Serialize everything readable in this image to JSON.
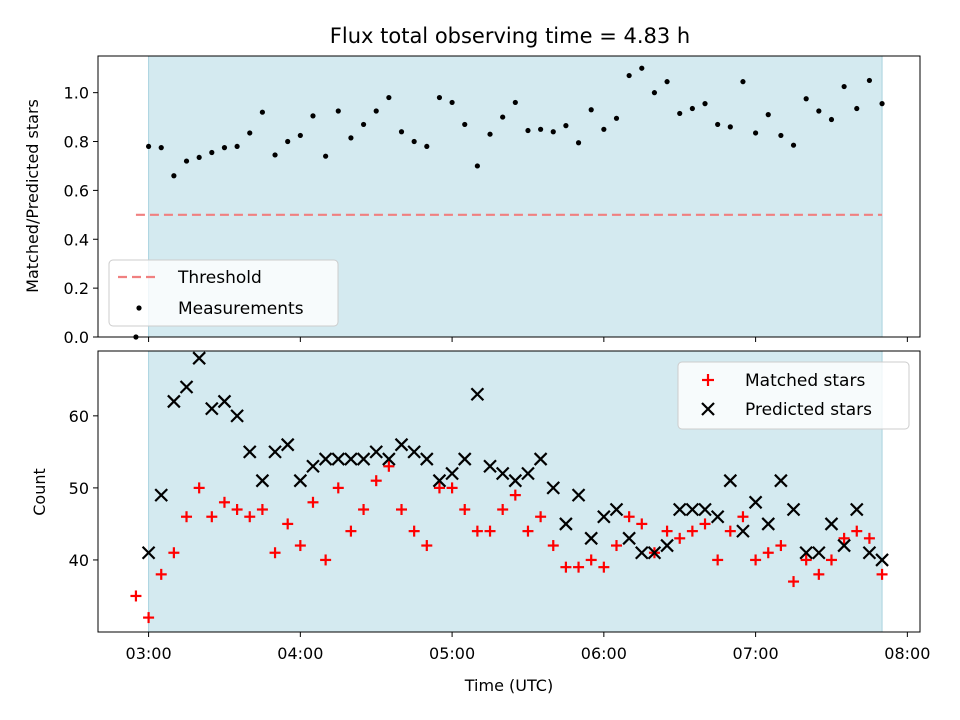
{
  "title": "Flux total observing time = 4.83 h",
  "colors": {
    "observing_span": "#d4eaf0",
    "threshold": "#f08080",
    "measurements": "#000000",
    "matched": "#ff0000",
    "predicted": "#000000"
  },
  "chart_data": [
    {
      "type": "scatter",
      "ylabel": "Matched/Predicted stars",
      "xlim": [
        "02:40",
        "08:05"
      ],
      "ylim": [
        0,
        1.15
      ],
      "yticks": [
        0.0,
        0.2,
        0.4,
        0.6,
        0.8,
        1.0
      ],
      "ytick_labels": [
        "0.0",
        "0.2",
        "0.4",
        "0.6",
        "0.8",
        "1.0"
      ],
      "shaded_span": [
        "03:00",
        "07:50"
      ],
      "legend": {
        "location": "lower-left",
        "entries": [
          "Threshold",
          "Measurements"
        ]
      },
      "threshold": {
        "name": "Threshold",
        "y": 0.5,
        "x_range": [
          "02:55",
          "07:50"
        ]
      },
      "series": [
        {
          "name": "Measurements",
          "marker": "dot",
          "x": [
            "02:55",
            "03:00",
            "03:05",
            "03:10",
            "03:15",
            "03:20",
            "03:25",
            "03:30",
            "03:35",
            "03:40",
            "03:45",
            "03:50",
            "03:55",
            "04:00",
            "04:05",
            "04:10",
            "04:15",
            "04:20",
            "04:25",
            "04:30",
            "04:35",
            "04:40",
            "04:45",
            "04:50",
            "04:55",
            "05:00",
            "05:05",
            "05:10",
            "05:15",
            "05:20",
            "05:25",
            "05:30",
            "05:35",
            "05:40",
            "05:45",
            "05:50",
            "05:55",
            "06:00",
            "06:05",
            "06:10",
            "06:15",
            "06:20",
            "06:25",
            "06:30",
            "06:35",
            "06:40",
            "06:45",
            "06:50",
            "06:55",
            "07:00",
            "07:05",
            "07:10",
            "07:15",
            "07:20",
            "07:25",
            "07:30",
            "07:35",
            "07:40",
            "07:45",
            "07:50"
          ],
          "y": [
            0.0,
            0.78,
            0.775,
            0.66,
            0.72,
            0.735,
            0.755,
            0.775,
            0.78,
            0.835,
            0.92,
            0.745,
            0.8,
            0.825,
            0.905,
            0.74,
            0.925,
            0.815,
            0.87,
            0.925,
            0.98,
            0.84,
            0.8,
            0.78,
            0.98,
            0.96,
            0.87,
            0.7,
            0.83,
            0.9,
            0.96,
            0.845,
            0.85,
            0.84,
            0.865,
            0.795,
            0.93,
            0.85,
            0.895,
            1.07,
            1.1,
            1.0,
            1.045,
            0.915,
            0.935,
            0.955,
            0.87,
            0.86,
            1.045,
            0.835,
            0.91,
            0.825,
            0.785,
            0.975,
            0.925,
            0.89,
            1.025,
            0.935,
            1.05,
            0.955
          ]
        }
      ]
    },
    {
      "type": "scatter",
      "xlabel": "Time (UTC)",
      "ylabel": "Count",
      "xlim": [
        "02:40",
        "08:05"
      ],
      "ylim": [
        30,
        69
      ],
      "xticks": [
        "03:00",
        "04:00",
        "05:00",
        "06:00",
        "07:00",
        "08:00"
      ],
      "xtick_labels": [
        "03:00",
        "04:00",
        "05:00",
        "06:00",
        "07:00",
        "08:00"
      ],
      "yticks": [
        40,
        50,
        60
      ],
      "ytick_labels": [
        "40",
        "50",
        "60"
      ],
      "shaded_span": [
        "03:00",
        "07:50"
      ],
      "legend": {
        "location": "upper-right",
        "entries": [
          "Matched stars",
          "Predicted stars"
        ]
      },
      "series": [
        {
          "name": "Matched stars",
          "marker": "plus",
          "x": [
            "02:55",
            "03:00",
            "03:05",
            "03:10",
            "03:15",
            "03:20",
            "03:25",
            "03:30",
            "03:35",
            "03:40",
            "03:45",
            "03:50",
            "03:55",
            "04:00",
            "04:05",
            "04:10",
            "04:15",
            "04:20",
            "04:25",
            "04:30",
            "04:35",
            "04:40",
            "04:45",
            "04:50",
            "04:55",
            "05:00",
            "05:05",
            "05:10",
            "05:15",
            "05:20",
            "05:25",
            "05:30",
            "05:35",
            "05:40",
            "05:45",
            "05:50",
            "05:55",
            "06:00",
            "06:05",
            "06:10",
            "06:15",
            "06:20",
            "06:25",
            "06:30",
            "06:35",
            "06:40",
            "06:45",
            "06:50",
            "06:55",
            "07:00",
            "07:05",
            "07:10",
            "07:15",
            "07:20",
            "07:25",
            "07:30",
            "07:35",
            "07:40",
            "07:45",
            "07:50"
          ],
          "y": [
            35,
            32,
            38,
            41,
            46,
            50,
            46,
            48,
            47,
            46,
            47,
            41,
            45,
            42,
            48,
            40,
            50,
            44,
            47,
            51,
            53,
            47,
            44,
            42,
            50,
            50,
            47,
            44,
            44,
            47,
            49,
            44,
            46,
            42,
            39,
            39,
            40,
            39,
            42,
            46,
            45,
            41,
            44,
            43,
            44,
            45,
            40,
            44,
            46,
            40,
            41,
            42,
            37,
            40,
            38,
            40,
            43,
            44,
            43,
            38
          ]
        },
        {
          "name": "Predicted stars",
          "marker": "x",
          "x": [
            "03:00",
            "03:05",
            "03:10",
            "03:15",
            "03:20",
            "03:25",
            "03:30",
            "03:35",
            "03:40",
            "03:45",
            "03:50",
            "03:55",
            "04:00",
            "04:05",
            "04:10",
            "04:15",
            "04:20",
            "04:25",
            "04:30",
            "04:35",
            "04:40",
            "04:45",
            "04:50",
            "04:55",
            "05:00",
            "05:05",
            "05:10",
            "05:15",
            "05:20",
            "05:25",
            "05:30",
            "05:35",
            "05:40",
            "05:45",
            "05:50",
            "05:55",
            "06:00",
            "06:05",
            "06:10",
            "06:15",
            "06:20",
            "06:25",
            "06:30",
            "06:35",
            "06:40",
            "06:45",
            "06:50",
            "06:55",
            "07:00",
            "07:05",
            "07:10",
            "07:15",
            "07:20",
            "07:25",
            "07:30",
            "07:35",
            "07:40",
            "07:45",
            "07:50"
          ],
          "y": [
            41,
            49,
            62,
            64,
            68,
            61,
            62,
            60,
            55,
            51,
            55,
            56,
            51,
            53,
            54,
            54,
            54,
            54,
            55,
            54,
            56,
            55,
            54,
            51,
            52,
            54,
            63,
            53,
            52,
            51,
            52,
            54,
            50,
            45,
            49,
            43,
            46,
            47,
            43,
            41,
            41,
            42,
            47,
            47,
            47,
            46,
            51,
            44,
            48,
            45,
            51,
            47,
            41,
            41,
            45,
            42,
            47,
            41,
            40
          ]
        }
      ]
    }
  ]
}
